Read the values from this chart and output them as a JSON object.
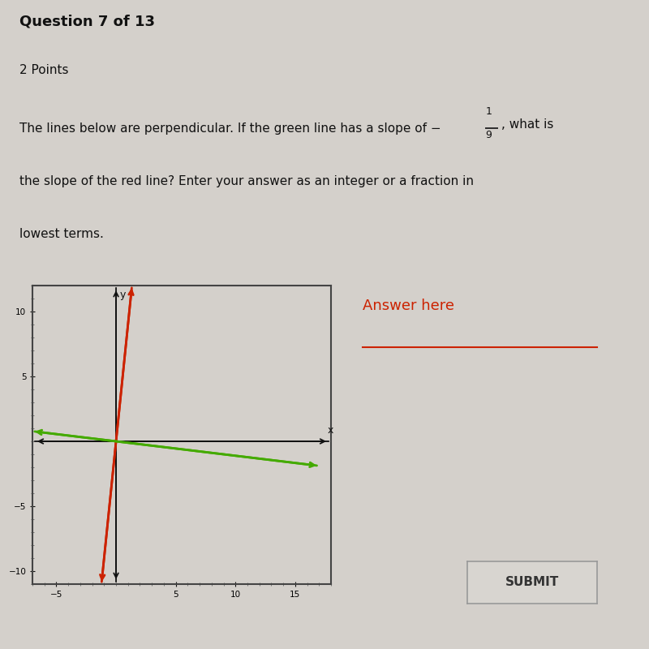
{
  "title_text": "Question 7 of 13",
  "points_text": "2 Points",
  "answer_label": "Answer here",
  "submit_label": "SUBMIT",
  "bg_color": "#d4d0cb",
  "graph_box_color": "#444444",
  "x_min": -7,
  "x_max": 18,
  "y_min": -11,
  "y_max": 12,
  "x_ticks": [
    -5,
    5,
    10,
    15
  ],
  "y_ticks": [
    -10,
    -5,
    5,
    10
  ],
  "red_slope": 9,
  "red_intercept": 0,
  "green_slope": -0.11111,
  "green_intercept": 0,
  "green_x_start": -7,
  "green_x_end": 17,
  "red_color": "#cc2200",
  "green_color": "#44aa00",
  "axis_color": "#111111",
  "text_color": "#111111",
  "answer_color": "#cc2200"
}
